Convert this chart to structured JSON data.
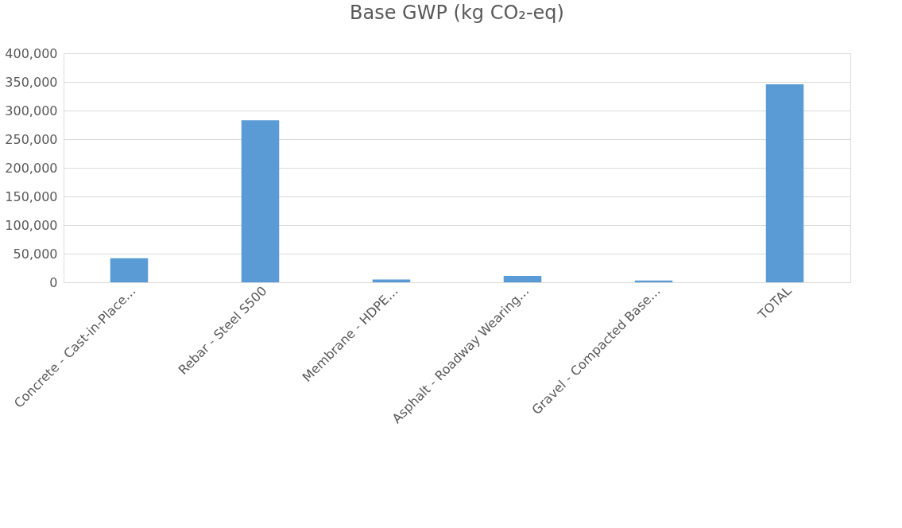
{
  "chart_data": {
    "type": "bar",
    "title": "Base GWP (kg CO₂-eq)",
    "categories": [
      "Concrete - Cast-in-Place…",
      "Rebar - Steel S500",
      "Membrane - HDPE…",
      "Asphalt - Roadway Wearing…",
      "Gravel - Compacted Base…",
      "TOTAL"
    ],
    "values": [
      42000,
      283000,
      5000,
      11000,
      3000,
      346000
    ],
    "color": "#5b9bd5",
    "ylim": [
      0,
      400000
    ],
    "yticks": [
      {
        "value": 0,
        "label": "0"
      },
      {
        "value": 50000,
        "label": "50,000"
      },
      {
        "value": 100000,
        "label": "100,000"
      },
      {
        "value": 150000,
        "label": "150,000"
      },
      {
        "value": 200000,
        "label": "200,000"
      },
      {
        "value": 250000,
        "label": "250,000"
      },
      {
        "value": 300000,
        "label": "300,000"
      },
      {
        "value": 350000,
        "label": "350,000"
      },
      {
        "value": 400000,
        "label": "400,000"
      }
    ],
    "grid": "y"
  }
}
